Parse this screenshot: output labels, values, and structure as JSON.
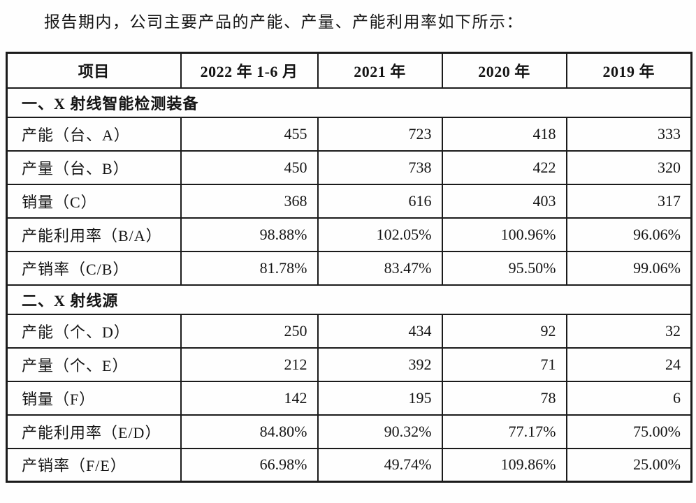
{
  "page": {
    "intro": "报告期内，公司主要产品的产能、产量、产能利用率如下所示："
  },
  "table": {
    "headers": [
      "项目",
      "2022 年 1-6 月",
      "2021 年",
      "2020 年",
      "2019 年"
    ],
    "sections": [
      {
        "title": "一、X 射线智能检测装备",
        "rows": [
          {
            "label": "产能（台、A）",
            "values": [
              "455",
              "723",
              "418",
              "333"
            ]
          },
          {
            "label": "产量（台、B）",
            "values": [
              "450",
              "738",
              "422",
              "320"
            ]
          },
          {
            "label": "销量（C）",
            "values": [
              "368",
              "616",
              "403",
              "317"
            ]
          },
          {
            "label": "产能利用率（B/A）",
            "values": [
              "98.88%",
              "102.05%",
              "100.96%",
              "96.06%"
            ]
          },
          {
            "label": "产销率（C/B）",
            "values": [
              "81.78%",
              "83.47%",
              "95.50%",
              "99.06%"
            ]
          }
        ]
      },
      {
        "title": "二、X 射线源",
        "rows": [
          {
            "label": "产能（个、D）",
            "values": [
              "250",
              "434",
              "92",
              "32"
            ]
          },
          {
            "label": "产量（个、E）",
            "values": [
              "212",
              "392",
              "71",
              "24"
            ]
          },
          {
            "label": "销量（F）",
            "values": [
              "142",
              "195",
              "78",
              "6"
            ]
          },
          {
            "label": "产能利用率（E/D）",
            "values": [
              "84.80%",
              "90.32%",
              "77.17%",
              "75.00%"
            ]
          },
          {
            "label": "产销率（F/E）",
            "values": [
              "66.98%",
              "49.74%",
              "109.86%",
              "25.00%"
            ]
          }
        ]
      }
    ]
  }
}
